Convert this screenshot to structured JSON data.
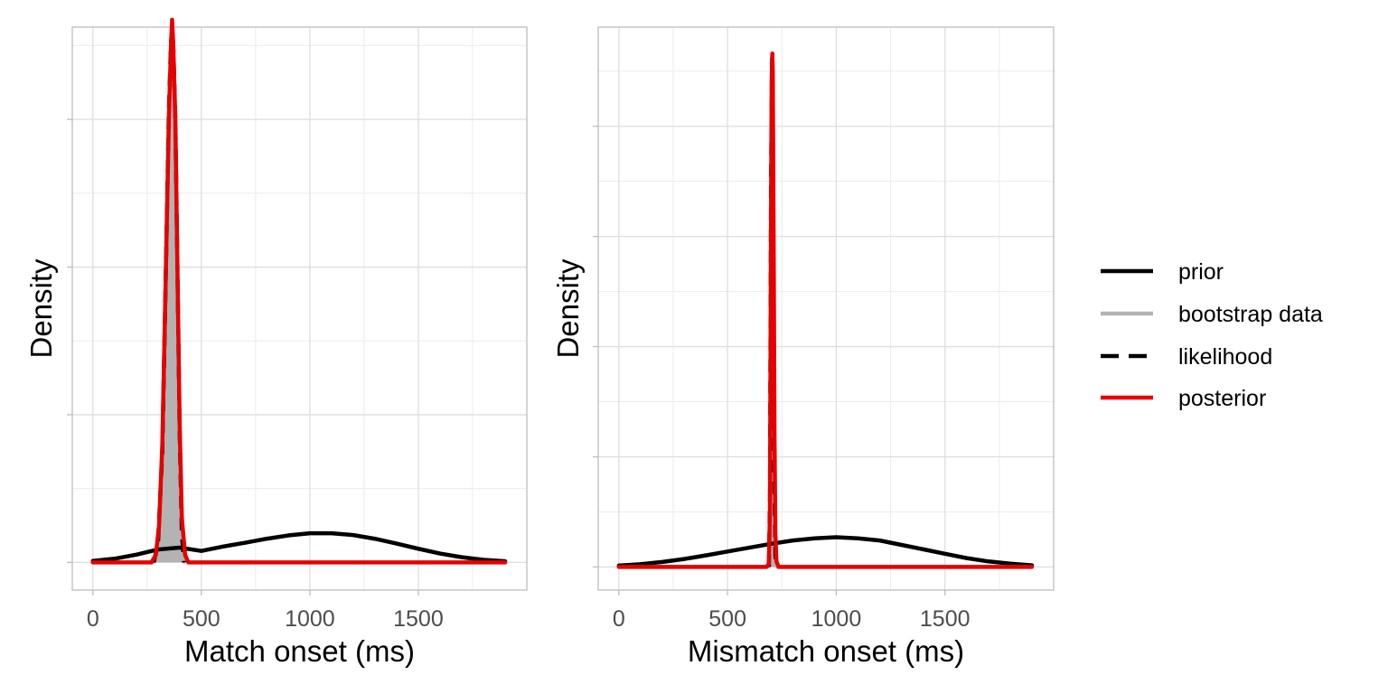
{
  "chart_data": [
    {
      "type": "line",
      "xlabel": "Match onset (ms)",
      "ylabel": "Density",
      "xlim": [
        -95,
        2000
      ],
      "ylim": [
        -0.00075,
        0.0145
      ],
      "x_ticks": [
        0,
        500,
        1000,
        1500
      ],
      "x_tick_labels": [
        "0",
        "500",
        "1000",
        "1500"
      ],
      "y_major_ticks": [
        0,
        0.004,
        0.008,
        0.012
      ],
      "y_tick_labels": [
        "",
        "",
        "",
        ""
      ],
      "grid": true,
      "series": [
        {
          "name": "prior",
          "color": "#000000",
          "dash": "solid",
          "x": [
            0,
            100,
            200,
            300,
            400,
            500,
            600,
            700,
            800,
            900,
            1000,
            1100,
            1200,
            1300,
            1400,
            1500,
            1600,
            1700,
            1800,
            1900
          ],
          "y": [
            4e-05,
            0.0001,
            0.00021,
            0.00035,
            0.0004,
            0.00031,
            0.00043,
            0.00053,
            0.00064,
            0.00073,
            0.00079,
            0.00079,
            0.00074,
            0.00064,
            0.00051,
            0.00037,
            0.00024,
            0.00014,
            7e-05,
            3e-05
          ]
        },
        {
          "name": "bootstrap data",
          "color": "#b3b3b3",
          "dash": "solid",
          "fill": true,
          "x": [
            280,
            300,
            320,
            335,
            350,
            360,
            365,
            370,
            380,
            390,
            400,
            410,
            420
          ],
          "y": [
            0,
            0.0005,
            0.003,
            0.0075,
            0.0122,
            0.0141,
            0.0144,
            0.0141,
            0.012,
            0.0078,
            0.0035,
            0.0008,
            0
          ]
        },
        {
          "name": "likelihood",
          "color": "#000000",
          "dash": "dashed",
          "x": [
            280,
            300,
            320,
            335,
            350,
            360,
            365,
            370,
            380,
            390,
            400,
            410,
            420
          ],
          "y": [
            0,
            0.0005,
            0.003,
            0.0075,
            0.0122,
            0.0141,
            0.0144,
            0.0141,
            0.012,
            0.0078,
            0.0035,
            0.0008,
            0
          ]
        },
        {
          "name": "posterior",
          "color": "#e60000",
          "dash": "solid",
          "x": [
            0,
            270,
            290,
            305,
            320,
            335,
            350,
            360,
            365,
            370,
            380,
            390,
            400,
            410,
            425,
            440,
            1900
          ],
          "y": [
            0,
            0,
            0.0002,
            0.001,
            0.0032,
            0.0075,
            0.012,
            0.014,
            0.0147,
            0.0141,
            0.012,
            0.0078,
            0.0037,
            0.0012,
            0.0002,
            0,
            0
          ]
        }
      ]
    },
    {
      "type": "line",
      "xlabel": "Mismatch onset (ms)",
      "ylabel": "Density",
      "xlim": [
        -95,
        2000
      ],
      "ylim": [
        -0.0021,
        0.049
      ],
      "x_ticks": [
        0,
        500,
        1000,
        1500
      ],
      "x_tick_labels": [
        "0",
        "500",
        "1000",
        "1500"
      ],
      "y_major_ticks": [
        0,
        0.01,
        0.02,
        0.03,
        0.04
      ],
      "y_tick_labels": [
        "",
        "",
        "",
        "",
        ""
      ],
      "grid": true,
      "series": [
        {
          "name": "prior",
          "color": "#000000",
          "dash": "solid",
          "x": [
            0,
            100,
            200,
            300,
            400,
            500,
            600,
            700,
            800,
            900,
            1000,
            1100,
            1200,
            1300,
            1400,
            1500,
            1600,
            1700,
            1800,
            1900
          ],
          "y": [
            0.00012,
            0.00025,
            0.00045,
            0.00072,
            0.00105,
            0.0014,
            0.00175,
            0.0021,
            0.0024,
            0.0026,
            0.0027,
            0.0026,
            0.0024,
            0.002,
            0.0016,
            0.0012,
            0.0008,
            0.0005,
            0.0003,
            0.00015
          ]
        },
        {
          "name": "bootstrap data",
          "color": "#b3b3b3",
          "dash": "solid",
          "fill": true,
          "x": [
            690,
            695,
            700,
            705,
            710,
            715,
            720,
            725
          ],
          "y": [
            0,
            0.006,
            0.035,
            0.0462,
            0.03,
            0.008,
            0.001,
            0
          ]
        },
        {
          "name": "likelihood",
          "color": "#000000",
          "dash": "dashed",
          "x": [
            690,
            695,
            700,
            705,
            710,
            715,
            720,
            725
          ],
          "y": [
            0,
            0.006,
            0.035,
            0.0462,
            0.03,
            0.008,
            0.001,
            0
          ]
        },
        {
          "name": "posterior",
          "color": "#e60000",
          "dash": "solid",
          "x": [
            0,
            680,
            690,
            695,
            700,
            703,
            706,
            708,
            712,
            716,
            720,
            725,
            735,
            1900
          ],
          "y": [
            0,
            0,
            0.0003,
            0.005,
            0.032,
            0.0442,
            0.0466,
            0.045,
            0.03,
            0.012,
            0.003,
            0.0005,
            0,
            0
          ]
        }
      ]
    }
  ],
  "legend": {
    "position": "right",
    "items": [
      {
        "label": "prior",
        "color": "#000000",
        "dash": "solid"
      },
      {
        "label": "bootstrap data",
        "color": "#b3b3b3",
        "dash": "solid"
      },
      {
        "label": "likelihood",
        "color": "#000000",
        "dash": "dashed"
      },
      {
        "label": "posterior",
        "color": "#e60000",
        "dash": "solid"
      }
    ]
  }
}
